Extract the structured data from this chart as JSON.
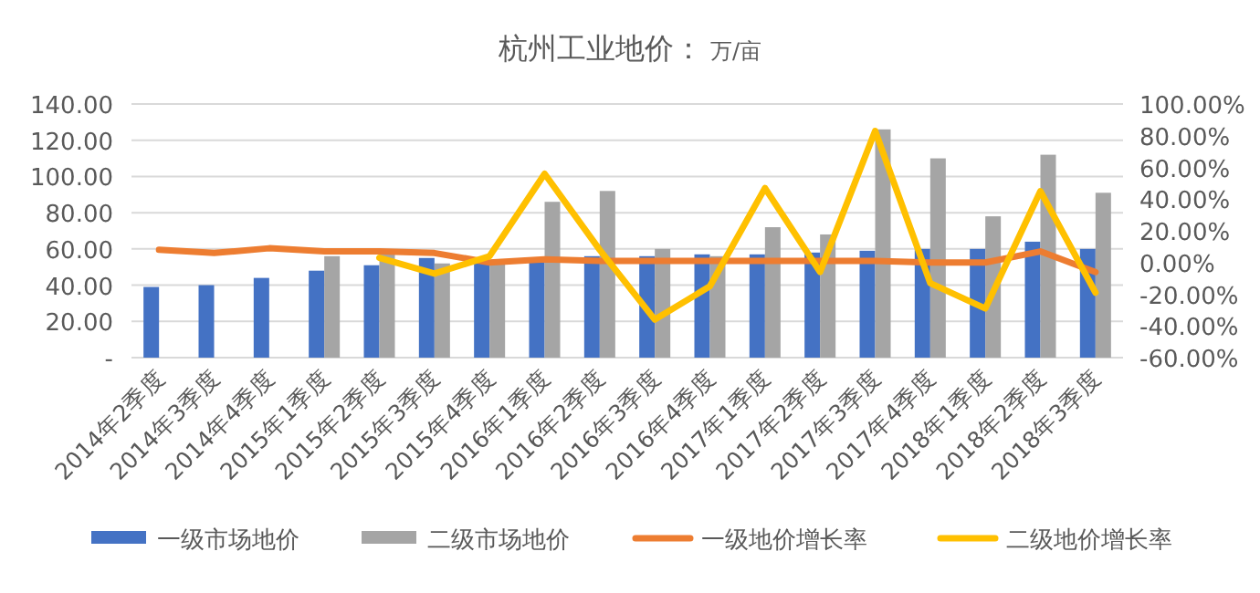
{
  "chart_data": {
    "type": "bar",
    "title": "杭州工业地价：",
    "subtitle": "万/亩",
    "categories": [
      "2014年2季度",
      "2014年3季度",
      "2014年4季度",
      "2015年1季度",
      "2015年2季度",
      "2015年3季度",
      "2015年4季度",
      "2016年1季度",
      "2016年2季度",
      "2016年3季度",
      "2016年4季度",
      "2017年1季度",
      "2017年2季度",
      "2017年3季度",
      "2017年4季度",
      "2018年1季度",
      "2018年2季度",
      "2018年3季度"
    ],
    "series": [
      {
        "name": "一级市场地价",
        "color": "#4472c4",
        "values": [
          39,
          40,
          44,
          48,
          51,
          55,
          52,
          53,
          56,
          56,
          57,
          57,
          58,
          59,
          60,
          60,
          64,
          60
        ]
      },
      {
        "name": "二级市场地价",
        "color": "#a5a5a5",
        "values": [
          null,
          null,
          null,
          56,
          57,
          52,
          52,
          86,
          92,
          60,
          56,
          72,
          68,
          126,
          110,
          78,
          112,
          91
        ]
      },
      {
        "name": "一级地价增长率",
        "color": "#ed7d31",
        "type": "line",
        "axis": "y2",
        "values": [
          8,
          6,
          9,
          7,
          7,
          6,
          0,
          2,
          1,
          1,
          1,
          1,
          1,
          1,
          0,
          0,
          7,
          -6
        ]
      },
      {
        "name": "二级地价增长率",
        "color": "#ffc000",
        "type": "line",
        "axis": "y2",
        "values": [
          null,
          null,
          null,
          null,
          3,
          -7,
          4,
          56,
          8,
          -36,
          -15,
          47,
          -6,
          83,
          -13,
          -29,
          45,
          -19
        ]
      }
    ],
    "ylim": [
      0,
      140
    ],
    "yticks": [
      {
        "value": 0,
        "label": "-"
      },
      {
        "value": 20,
        "label": "20.00"
      },
      {
        "value": 40,
        "label": "40.00"
      },
      {
        "value": 60,
        "label": "60.00"
      },
      {
        "value": 80,
        "label": "80.00"
      },
      {
        "value": 100,
        "label": "100.00"
      },
      {
        "value": 120,
        "label": "120.00"
      },
      {
        "value": 140,
        "label": "140.00"
      }
    ],
    "y2lim": [
      -60,
      100
    ],
    "y2ticks": [
      {
        "value": -60,
        "label": "-60.00%"
      },
      {
        "value": -40,
        "label": "-40.00%"
      },
      {
        "value": -20,
        "label": "-20.00%"
      },
      {
        "value": 0,
        "label": "0.00%"
      },
      {
        "value": 20,
        "label": "20.00%"
      },
      {
        "value": 40,
        "label": "40.00%"
      },
      {
        "value": 60,
        "label": "60.00%"
      },
      {
        "value": 80,
        "label": "80.00%"
      },
      {
        "value": 100,
        "label": "100.00%"
      }
    ],
    "grid": "y",
    "legend": "bottom"
  }
}
